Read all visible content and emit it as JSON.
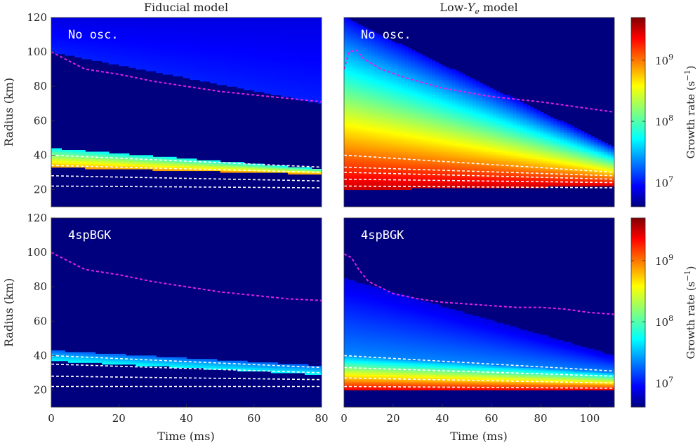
{
  "colors": {
    "background": "#00007f",
    "separatrix": "#e020e0",
    "contour": "#ffffff",
    "colormap": "jet"
  },
  "colorbar": {
    "label": "Growth rate (s",
    "label_sup": "−1",
    "label_close": ")",
    "scale": "log",
    "range": [
      4000000,
      5000000000
    ],
    "ticks": [
      {
        "base": "10",
        "exp": "7",
        "value": 10000000
      },
      {
        "base": "10",
        "exp": "8",
        "value": 100000000
      },
      {
        "base": "10",
        "exp": "9",
        "value": 1000000000
      }
    ]
  },
  "chart_data": [
    {
      "type": "heatmap",
      "column_title": "Fiducial model",
      "annotation": "No osc.",
      "xlabel": "",
      "ylabel": "Radius (km)",
      "xlim": [
        0,
        80
      ],
      "ylim": [
        10,
        120
      ],
      "xticks": [],
      "yticks": [
        "20",
        "40",
        "60",
        "80",
        "100",
        "120"
      ],
      "separatrix": {
        "x": [
          0,
          5,
          10,
          20,
          30,
          40,
          50,
          60,
          70,
          80
        ],
        "y": [
          100,
          95,
          90,
          87,
          83,
          80,
          77,
          75,
          73,
          71
        ]
      },
      "contours": [
        {
          "x": [
            0,
            80
          ],
          "y": [
            40,
            33
          ]
        },
        {
          "x": [
            0,
            80
          ],
          "y": [
            34,
            30
          ]
        },
        {
          "x": [
            0,
            80
          ],
          "y": [
            28,
            25
          ]
        },
        {
          "x": [
            0,
            80
          ],
          "y": [
            22,
            21
          ]
        }
      ],
      "growth_bands": [
        {
          "x": [
            0,
            80
          ],
          "y_low": [
            33,
            29
          ],
          "y_high": [
            44,
            32
          ],
          "peak_rate": 700000000,
          "edge_rate": 60000000
        },
        {
          "x": [
            0,
            80
          ],
          "y_low": [
            100,
            70
          ],
          "y_high": [
            120,
            120
          ],
          "peak_rate": 12000000,
          "edge_rate": 8000000
        }
      ]
    },
    {
      "type": "heatmap",
      "column_title": "Low-",
      "column_title_var": "Y",
      "column_title_sub": "e",
      "column_title_rest": " model",
      "annotation": "No osc.",
      "xlabel": "",
      "ylabel": "",
      "xlim": [
        0,
        110
      ],
      "ylim": [
        10,
        120
      ],
      "xticks": [],
      "yticks": [],
      "separatrix": {
        "x": [
          0,
          2,
          5,
          8,
          15,
          25,
          40,
          60,
          80,
          100,
          110
        ],
        "y": [
          90,
          100,
          101,
          96,
          90,
          85,
          79,
          74,
          71,
          67,
          65
        ]
      },
      "contours": [
        {
          "x": [
            0,
            110
          ],
          "y": [
            40,
            30
          ]
        },
        {
          "x": [
            0,
            110
          ],
          "y": [
            33,
            28
          ]
        },
        {
          "x": [
            0,
            110
          ],
          "y": [
            30,
            26
          ]
        },
        {
          "x": [
            0,
            110
          ],
          "y": [
            26,
            24
          ]
        },
        {
          "x": [
            0,
            110
          ],
          "y": [
            22,
            21
          ]
        }
      ],
      "growth_bands": [
        {
          "x": [
            0,
            110
          ],
          "y_low": [
            20,
            22
          ],
          "y_high": [
            120,
            45
          ],
          "peak_rate": 3000000000,
          "edge_rate": 10000000
        }
      ]
    },
    {
      "type": "heatmap",
      "column_title": "",
      "annotation": "4spBGK",
      "xlabel": "Time (ms)",
      "ylabel": "Radius (km)",
      "xlim": [
        0,
        80
      ],
      "ylim": [
        10,
        120
      ],
      "xticks": [
        "0",
        "20",
        "40",
        "60",
        "80"
      ],
      "yticks": [
        "20",
        "40",
        "60",
        "80",
        "100",
        "120"
      ],
      "separatrix": {
        "x": [
          0,
          5,
          10,
          20,
          30,
          40,
          50,
          60,
          70,
          80
        ],
        "y": [
          100,
          95,
          90,
          87,
          83,
          80,
          77,
          75,
          73,
          72
        ]
      },
      "contours": [
        {
          "x": [
            0,
            80
          ],
          "y": [
            40,
            33
          ]
        },
        {
          "x": [
            0,
            80
          ],
          "y": [
            35,
            30
          ]
        },
        {
          "x": [
            0,
            80
          ],
          "y": [
            28,
            26
          ]
        },
        {
          "x": [
            0,
            80
          ],
          "y": [
            22,
            22
          ]
        }
      ],
      "growth_bands": [
        {
          "x": [
            0,
            80
          ],
          "y_low": [
            37,
            29
          ],
          "y_high": [
            43,
            34
          ],
          "peak_rate": 60000000,
          "edge_rate": 20000000
        }
      ]
    },
    {
      "type": "heatmap",
      "column_title": "",
      "annotation": "4spBGK",
      "xlabel": "Time (ms)",
      "ylabel": "",
      "xlim": [
        0,
        110
      ],
      "ylim": [
        10,
        120
      ],
      "xticks": [
        "0",
        "20",
        "40",
        "60",
        "80",
        "100"
      ],
      "yticks": [],
      "separatrix": {
        "x": [
          0,
          3,
          6,
          10,
          20,
          30,
          40,
          50,
          60,
          70,
          80,
          90,
          100,
          110
        ],
        "y": [
          99,
          97,
          90,
          83,
          76,
          73,
          71,
          70,
          69,
          68,
          68,
          67,
          65,
          64
        ]
      },
      "contours": [
        {
          "x": [
            0,
            110
          ],
          "y": [
            40,
            31
          ]
        },
        {
          "x": [
            0,
            110
          ],
          "y": [
            33,
            28
          ]
        },
        {
          "x": [
            0,
            110
          ],
          "y": [
            27,
            24
          ]
        },
        {
          "x": [
            0,
            110
          ],
          "y": [
            22,
            21
          ]
        }
      ],
      "growth_bands": [
        {
          "x": [
            0,
            110
          ],
          "y_low": [
            20,
            20
          ],
          "y_high": [
            40,
            30
          ],
          "peak_rate": 2500000000,
          "edge_rate": 30000000
        },
        {
          "x": [
            0,
            110
          ],
          "y_low": [
            40,
            30
          ],
          "y_high": [
            85,
            40
          ],
          "peak_rate": 25000000,
          "edge_rate": 8000000
        }
      ]
    }
  ]
}
